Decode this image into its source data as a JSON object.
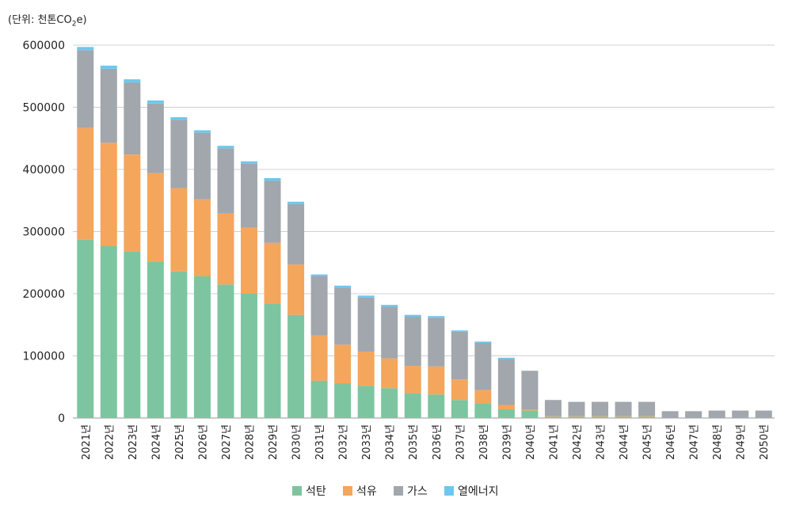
{
  "unit_label": {
    "prefix": "(단위: 천톤CO",
    "sub": "2",
    "suffix": "e)"
  },
  "chart_data": {
    "type": "bar",
    "stacked": true,
    "categories": [
      "2021년",
      "2022년",
      "2023년",
      "2024년",
      "2025년",
      "2026년",
      "2027년",
      "2028년",
      "2029년",
      "2030년",
      "2031년",
      "2032년",
      "2033년",
      "2034년",
      "2035년",
      "2036년",
      "2037년",
      "2038년",
      "2039년",
      "2040년",
      "2041년",
      "2042년",
      "2043년",
      "2044년",
      "2045년",
      "2046년",
      "2047년",
      "2048년",
      "2049년",
      "2050년"
    ],
    "series": [
      {
        "name": "석탄",
        "color": "#7dc5a0",
        "values": [
          287000,
          277000,
          268000,
          251000,
          236000,
          228000,
          215000,
          200000,
          184000,
          166000,
          60000,
          56000,
          52000,
          48000,
          40000,
          38000,
          29000,
          24000,
          14000,
          12000,
          2000,
          2000,
          2000,
          2000,
          2000,
          0,
          0,
          0,
          0,
          0
        ]
      },
      {
        "name": "석유",
        "color": "#f4a65c",
        "values": [
          180000,
          166000,
          156000,
          143000,
          134000,
          124000,
          114000,
          106000,
          98000,
          81000,
          73000,
          62000,
          55000,
          48000,
          44000,
          45000,
          33000,
          21000,
          7000,
          2000,
          1000,
          1000,
          1000,
          1000,
          1000,
          0,
          0,
          0,
          0,
          0
        ]
      },
      {
        "name": "가스",
        "color": "#a2a6ad",
        "values": [
          125000,
          119000,
          116000,
          112000,
          110000,
          107000,
          105000,
          103000,
          100000,
          97000,
          95000,
          92000,
          87000,
          83000,
          79000,
          78000,
          77000,
          76000,
          74000,
          62000,
          26000,
          23000,
          23000,
          23000,
          23000,
          11000,
          11000,
          12000,
          12000,
          12000
        ]
      },
      {
        "name": "열에너지",
        "color": "#6cc8ee",
        "values": [
          5000,
          5000,
          5000,
          5000,
          4000,
          4000,
          4000,
          4000,
          4000,
          4000,
          3000,
          3000,
          3000,
          3000,
          3000,
          3000,
          2000,
          2000,
          2000,
          0,
          0,
          0,
          0,
          0,
          0,
          0,
          0,
          0,
          0,
          0
        ]
      }
    ],
    "ylim": [
      0,
      600000
    ],
    "yticks": [
      0,
      100000,
      200000,
      300000,
      400000,
      500000,
      600000
    ],
    "grid": true,
    "legend": "bottom-center"
  }
}
